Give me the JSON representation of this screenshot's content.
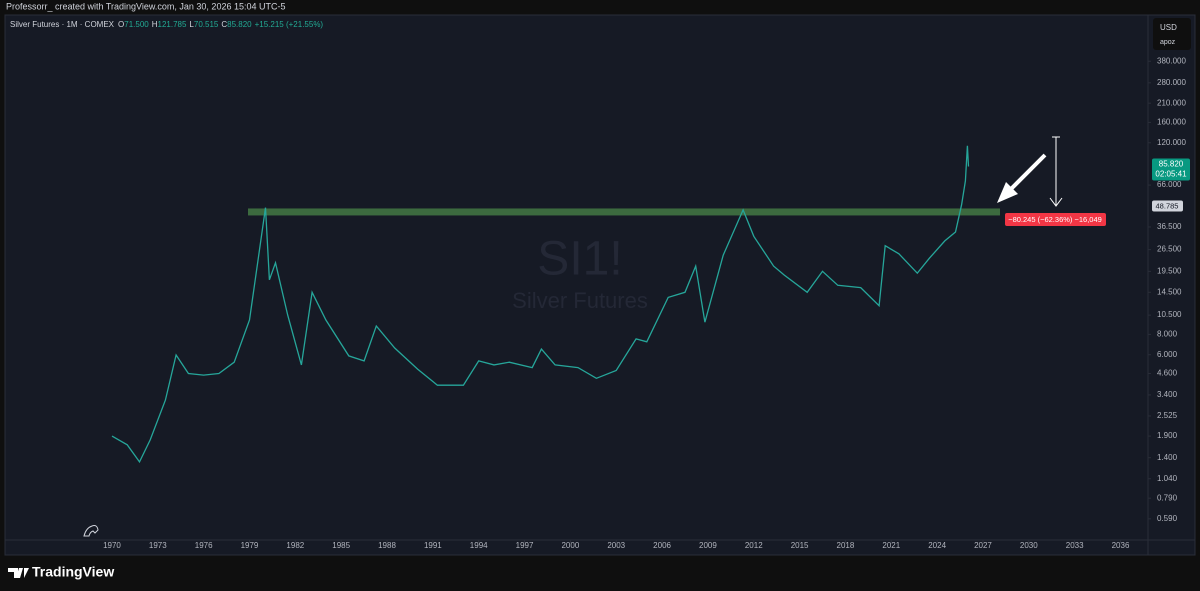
{
  "header": {
    "credit": "Professorr_ created with TradingView.com, Jan 30, 2026 15:04 UTC-5",
    "symbol": "Silver Futures · 1M · COMEX",
    "ohlc": [
      {
        "key": "O",
        "value": "71.500"
      },
      {
        "key": "H",
        "value": "121.785"
      },
      {
        "key": "L",
        "value": "70.515"
      },
      {
        "key": "C",
        "value": "85.820"
      }
    ],
    "change": "+15.215 (+21.55%)",
    "currency": "USD",
    "account": "apoz",
    "brand": "TradingView"
  },
  "chart_data": {
    "type": "line",
    "title": "SI1!",
    "subtitle": "Silver Futures",
    "color": "#26a69a",
    "log_scale": true,
    "x": [
      1970.0,
      1971.0,
      1971.8,
      1972.5,
      1973.5,
      1974.2,
      1975.0,
      1976.0,
      1977.0,
      1978.0,
      1979.0,
      1980.05,
      1980.3,
      1980.7,
      1981.5,
      1982.4,
      1983.1,
      1984.0,
      1985.5,
      1986.5,
      1987.3,
      1988.5,
      1990.0,
      1991.3,
      1993.0,
      1994.0,
      1995.0,
      1996.0,
      1997.5,
      1998.1,
      1999.0,
      2000.5,
      2001.7,
      2003.0,
      2004.3,
      2005.0,
      2006.4,
      2007.5,
      2008.2,
      2008.8,
      2010.0,
      2011.3,
      2012.0,
      2013.3,
      2014.0,
      2015.5,
      2016.5,
      2017.5,
      2019.0,
      2020.2,
      2020.6,
      2021.5,
      2022.7,
      2023.5,
      2024.5,
      2025.2,
      2025.6,
      2025.85,
      2025.98,
      2026.05
    ],
    "values": [
      1.9,
      1.68,
      1.32,
      1.8,
      3.16,
      5.98,
      4.6,
      4.5,
      4.6,
      5.4,
      9.8,
      48,
      17.3,
      22,
      10.5,
      5.2,
      14.5,
      9.8,
      5.9,
      5.5,
      9,
      6.6,
      4.9,
      3.9,
      3.9,
      5.5,
      5.2,
      5.4,
      5,
      6.5,
      5.2,
      5,
      4.3,
      4.8,
      7.5,
      7.2,
      13.5,
      14.5,
      21,
      9.5,
      24.5,
      46.5,
      32,
      21,
      18.5,
      14.5,
      19.5,
      16,
      15.5,
      12,
      28,
      25,
      19,
      23.5,
      30,
      34,
      50,
      70,
      115,
      85.82
    ],
    "xlim": [
      1963,
      2037.8
    ],
    "xticks": [
      1970,
      1973,
      1976,
      1979,
      1982,
      1985,
      1988,
      1991,
      1994,
      1997,
      2000,
      2003,
      2006,
      2009,
      2012,
      2015,
      2018,
      2021,
      2024,
      2027,
      2030,
      2033,
      2036
    ],
    "ylim": [
      0.45,
      700
    ],
    "yticks": [
      {
        "value": 0.59,
        "label": "0.590"
      },
      {
        "value": 0.79,
        "label": "0.790"
      },
      {
        "value": 1.04,
        "label": "1.040"
      },
      {
        "value": 1.4,
        "label": "1.400"
      },
      {
        "value": 1.9,
        "label": "1.900"
      },
      {
        "value": 2.525,
        "label": "2.525"
      },
      {
        "value": 3.4,
        "label": "3.400"
      },
      {
        "value": 4.6,
        "label": "4.600"
      },
      {
        "value": 6,
        "label": "6.000"
      },
      {
        "value": 8,
        "label": "8.000"
      },
      {
        "value": 10.5,
        "label": "10.500"
      },
      {
        "value": 14.5,
        "label": "14.500"
      },
      {
        "value": 19.5,
        "label": "19.500"
      },
      {
        "value": 26.5,
        "label": "26.500"
      },
      {
        "value": 36.5,
        "label": "36.500"
      },
      {
        "value": 66,
        "label": "66.000"
      },
      {
        "value": 120,
        "label": "120.000"
      },
      {
        "value": 160,
        "label": "160.000"
      },
      {
        "value": 210,
        "label": "210.000"
      },
      {
        "value": 280,
        "label": "280.000"
      },
      {
        "value": 380,
        "label": "380.000"
      }
    ],
    "last_price": {
      "value": 85.82,
      "label": "85.820",
      "countdown": "02:05:41"
    },
    "price_line": {
      "value": 48.785,
      "label": "48.785"
    },
    "measure_label": "−80.245 (−62.36%) −16,049"
  }
}
